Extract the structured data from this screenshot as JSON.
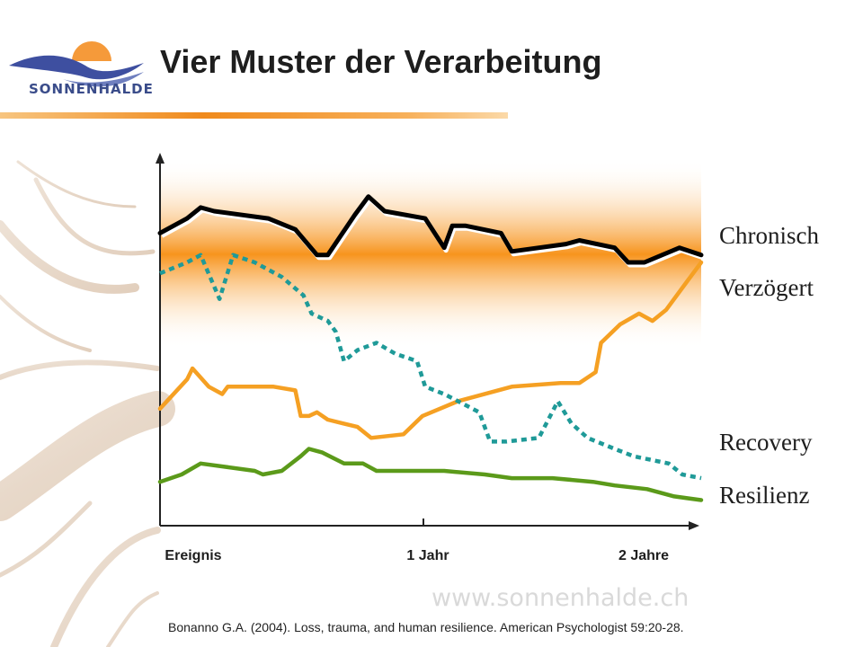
{
  "slide": {
    "title": "Vier Muster der Verarbeitung",
    "logo_text": "SONNENHALDE",
    "watermark": "www.sonnenhalde.ch",
    "citation": "Bonanno G.A. (2004). Loss, trauma, and human resilience. American Psychologist 59:20-28."
  },
  "colors": {
    "chronic": "#000000",
    "delayed": "#f5a023",
    "recovery": "#1f9a98",
    "resilience": "#5b9a1a",
    "band": "#f7941d"
  },
  "chart_data": {
    "type": "line",
    "title": "",
    "xlabel": "",
    "ylabel": "",
    "x_ticks": [
      "Ereignis",
      "1 Jahr",
      "2 Jahre"
    ],
    "x_tick_positions": [
      0,
      1,
      2
    ],
    "xlim": [
      0,
      2
    ],
    "ylim": [
      0,
      100
    ],
    "grid": false,
    "legend": "right",
    "series": [
      {
        "name": "Chronisch",
        "key": "chronic",
        "style": "solid",
        "points": [
          [
            0,
            80
          ],
          [
            0.1,
            84
          ],
          [
            0.15,
            87
          ],
          [
            0.2,
            86
          ],
          [
            0.4,
            84
          ],
          [
            0.5,
            81
          ],
          [
            0.58,
            74
          ],
          [
            0.62,
            74
          ],
          [
            0.72,
            85
          ],
          [
            0.77,
            90
          ],
          [
            0.8,
            88
          ],
          [
            0.83,
            86
          ],
          [
            0.98,
            84
          ],
          [
            1.05,
            76
          ],
          [
            1.08,
            82
          ],
          [
            1.13,
            82
          ],
          [
            1.26,
            80
          ],
          [
            1.3,
            75
          ],
          [
            1.5,
            77
          ],
          [
            1.55,
            78
          ],
          [
            1.68,
            76
          ],
          [
            1.73,
            72
          ],
          [
            1.79,
            72
          ],
          [
            1.92,
            76
          ],
          [
            2,
            74
          ]
        ]
      },
      {
        "name": "Verzögert",
        "key": "delayed",
        "style": "solid",
        "points": [
          [
            0,
            32
          ],
          [
            0.1,
            40
          ],
          [
            0.12,
            43
          ],
          [
            0.18,
            38
          ],
          [
            0.23,
            36
          ],
          [
            0.25,
            38
          ],
          [
            0.42,
            38
          ],
          [
            0.5,
            37
          ],
          [
            0.52,
            30
          ],
          [
            0.55,
            30
          ],
          [
            0.58,
            31
          ],
          [
            0.62,
            29
          ],
          [
            0.73,
            27
          ],
          [
            0.78,
            24
          ],
          [
            0.9,
            25
          ],
          [
            0.97,
            30
          ],
          [
            1.1,
            34
          ],
          [
            1.3,
            38
          ],
          [
            1.48,
            39
          ],
          [
            1.55,
            39
          ],
          [
            1.61,
            42
          ],
          [
            1.63,
            50
          ],
          [
            1.7,
            55
          ],
          [
            1.77,
            58
          ],
          [
            1.82,
            56
          ],
          [
            1.87,
            59
          ],
          [
            1.96,
            68
          ],
          [
            2,
            72
          ]
        ]
      },
      {
        "name": "Recovery",
        "key": "recovery",
        "style": "dotted",
        "points": [
          [
            0,
            69
          ],
          [
            0.1,
            72
          ],
          [
            0.15,
            74
          ],
          [
            0.22,
            62
          ],
          [
            0.27,
            74
          ],
          [
            0.35,
            72
          ],
          [
            0.45,
            68
          ],
          [
            0.53,
            63
          ],
          [
            0.56,
            58
          ],
          [
            0.62,
            56
          ],
          [
            0.65,
            53
          ],
          [
            0.68,
            45
          ],
          [
            0.73,
            48
          ],
          [
            0.8,
            50
          ],
          [
            0.87,
            47
          ],
          [
            0.95,
            45
          ],
          [
            0.98,
            38
          ],
          [
            1.05,
            36
          ],
          [
            1.18,
            31
          ],
          [
            1.22,
            23
          ],
          [
            1.28,
            23
          ],
          [
            1.4,
            24
          ],
          [
            1.47,
            34
          ],
          [
            1.52,
            28
          ],
          [
            1.58,
            24
          ],
          [
            1.68,
            21
          ],
          [
            1.75,
            19
          ],
          [
            1.88,
            17
          ],
          [
            1.93,
            14
          ],
          [
            2,
            13
          ]
        ]
      },
      {
        "name": "Resilienz",
        "key": "resilience",
        "style": "solid",
        "points": [
          [
            0,
            12
          ],
          [
            0.08,
            14
          ],
          [
            0.15,
            17
          ],
          [
            0.25,
            16
          ],
          [
            0.35,
            15
          ],
          [
            0.38,
            14
          ],
          [
            0.45,
            15
          ],
          [
            0.52,
            19
          ],
          [
            0.55,
            21
          ],
          [
            0.6,
            20
          ],
          [
            0.68,
            17
          ],
          [
            0.75,
            17
          ],
          [
            0.8,
            15
          ],
          [
            0.87,
            15
          ],
          [
            0.98,
            15
          ],
          [
            1.05,
            15
          ],
          [
            1.2,
            14
          ],
          [
            1.3,
            13
          ],
          [
            1.45,
            13
          ],
          [
            1.6,
            12
          ],
          [
            1.68,
            11
          ],
          [
            1.8,
            10
          ],
          [
            1.9,
            8
          ],
          [
            2,
            7
          ]
        ]
      }
    ]
  }
}
